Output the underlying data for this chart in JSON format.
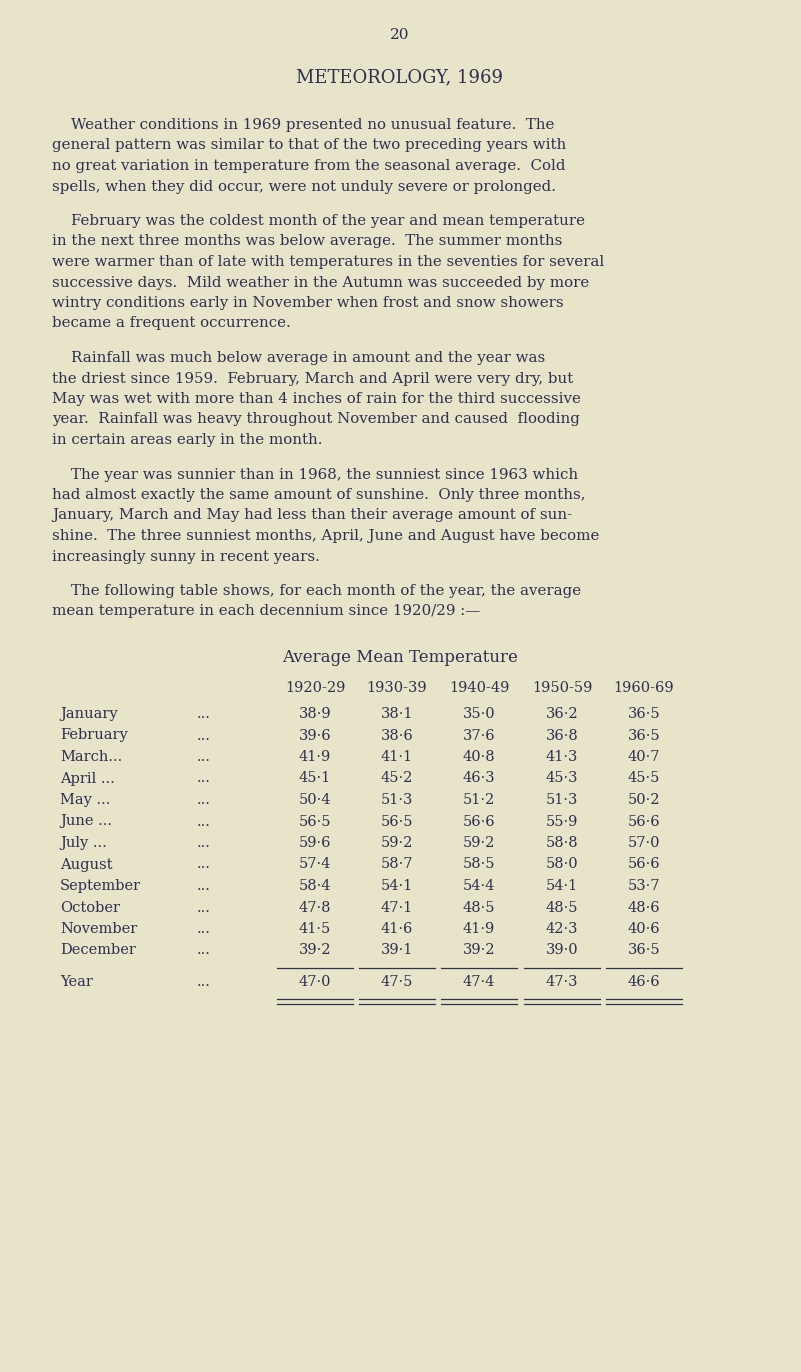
{
  "page_number": "20",
  "title": "METEOROLOGY, 1969",
  "background_color": "#e8e4c9",
  "text_color": "#2d3050",
  "para1_lines": [
    "    Weather conditions in 1969 presented no unusual feature.  The",
    "general pattern was similar to that of the two preceding years with",
    "no great variation in temperature from the seasonal average.  Cold",
    "spells, when they did occur, were not unduly severe or prolonged."
  ],
  "para2_lines": [
    "    February was the coldest month of the year and mean temperature",
    "in the next three months was below average.  The summer months",
    "were warmer than of late with temperatures in the seventies for several",
    "successive days.  Mild weather in the Autumn was succeeded by more",
    "wintry conditions early in November when frost and snow showers",
    "became a frequent occurrence."
  ],
  "para3_lines": [
    "    Rainfall was much below average in amount and the year was",
    "the driest since 1959.  February, March and April were very dry, but",
    "May was wet with more than 4 inches of rain for the third successive",
    "year.  Rainfall was heavy throughout November and caused  flooding",
    "in certain areas early in the month."
  ],
  "para4_lines": [
    "    The year was sunnier than in 1968, the sunniest since 1963 which",
    "had almost exactly the same amount of sunshine.  Only three months,",
    "January, March and May had less than their average amount of sun-",
    "shine.  The three sunniest months, April, June and August have become",
    "increasingly sunny in recent years."
  ],
  "para5_lines": [
    "    The following table shows, for each month of the year, the average",
    "mean temperature in each decennium since 1920/29 :—"
  ],
  "table_title": "Average Mean Temperature",
  "col_headers": [
    "1920-29",
    "1930-39",
    "1940-49",
    "1950-59",
    "1960-69"
  ],
  "row_labels": [
    "January",
    "February",
    "March...",
    "April ...",
    "May ...",
    "June ...",
    "July ...",
    "August",
    "September",
    "October",
    "November",
    "December"
  ],
  "row_dots": [
    "...",
    "...",
    "...",
    "...",
    "...",
    "...",
    "...",
    "...",
    "...",
    "...",
    "...",
    "..."
  ],
  "table_data_fmt": [
    [
      "38·9",
      "38·1",
      "35·0",
      "36·2",
      "36·5"
    ],
    [
      "39·6",
      "38·6",
      "37·6",
      "36·8",
      "36·5"
    ],
    [
      "41·9",
      "41·1",
      "40·8",
      "41·3",
      "40·7"
    ],
    [
      "45·1",
      "45·2",
      "46·3",
      "45·3",
      "45·5"
    ],
    [
      "50·4",
      "51·3",
      "51·2",
      "51·3",
      "50·2"
    ],
    [
      "56·5",
      "56·5",
      "56·6",
      "55·9",
      "56·6"
    ],
    [
      "59·6",
      "59·2",
      "59·2",
      "58·8",
      "57·0"
    ],
    [
      "57·4",
      "58·7",
      "58·5",
      "58·0",
      "56·6"
    ],
    [
      "58·4",
      "54·1",
      "54·4",
      "54·1",
      "53·7"
    ],
    [
      "47·8",
      "47·1",
      "48·5",
      "48·5",
      "48·6"
    ],
    [
      "41·5",
      "41·6",
      "41·9",
      "42·3",
      "40·6"
    ],
    [
      "39·2",
      "39·1",
      "39·2",
      "39·0",
      "36·5"
    ]
  ],
  "year_row_fmt": [
    "47·0",
    "47·5",
    "47·4",
    "47·3",
    "46·6"
  ]
}
